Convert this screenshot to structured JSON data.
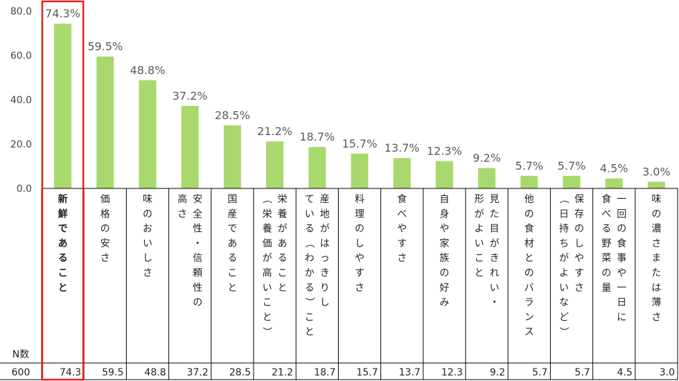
{
  "chart_data": {
    "type": "bar",
    "ylim": [
      0,
      80
    ],
    "yticks": [
      "0.0",
      "20.0",
      "40.0",
      "60.0",
      "80.0"
    ],
    "categories": [
      "新鮮であること",
      "価格の安さ",
      "味のおいしさ",
      "安全性・信頼性の高さ",
      "国産であること",
      "栄養があること（栄養価が高いこと）",
      "産地がはっきりしている（わかる）こと",
      "料理のしやすさ",
      "食べやすさ",
      "自身や家族の好み",
      "見た目がきれい・形がよいこと",
      "他の食材とのバランス",
      "保存のしやすさ（日持ちがよいなど）",
      "一回の食事や一日に食べる野菜の量",
      "味の濃さまたは薄さ"
    ],
    "category_lines": [
      [
        "新鮮であること"
      ],
      [
        "価格の安さ"
      ],
      [
        "味のおいしさ"
      ],
      [
        "安全性・信頼性の",
        "高さ"
      ],
      [
        "国産であること"
      ],
      [
        "栄養があること",
        "（栄養価が高いこと）"
      ],
      [
        "産地がはっきりし",
        "ている（わかる）こと"
      ],
      [
        "料理のしやすさ"
      ],
      [
        "食べやすさ"
      ],
      [
        "自身や家族の好み"
      ],
      [
        "見た目がきれい・",
        "形がよいこと"
      ],
      [
        "他の食材とのバランス"
      ],
      [
        "保存のしやすさ",
        "（日持ちがよいなど）"
      ],
      [
        "一回の食事や一日に",
        "食べる野菜の量"
      ],
      [
        "味の濃さまたは薄さ"
      ]
    ],
    "values": [
      74.3,
      59.5,
      48.8,
      37.2,
      28.5,
      21.2,
      18.7,
      15.7,
      13.7,
      12.3,
      9.2,
      5.7,
      5.7,
      4.5,
      3.0
    ],
    "value_labels": [
      "74.3%",
      "59.5%",
      "48.8%",
      "37.2%",
      "28.5%",
      "21.2%",
      "18.7%",
      "15.7%",
      "13.7%",
      "12.3%",
      "9.2%",
      "5.7%",
      "5.7%",
      "4.5%",
      "3.0%"
    ],
    "table_values": [
      "74.3",
      "59.5",
      "48.8",
      "37.2",
      "28.5",
      "21.2",
      "18.7",
      "15.7",
      "13.7",
      "12.3",
      "9.2",
      "5.7",
      "5.7",
      "4.5",
      "3.0"
    ],
    "n_header": "N数",
    "n_value": "600",
    "highlighted_index": 0,
    "colors": {
      "bar": "#a9d86e",
      "highlight": "#e02020",
      "grid": "#000000",
      "text": "#595959"
    }
  }
}
